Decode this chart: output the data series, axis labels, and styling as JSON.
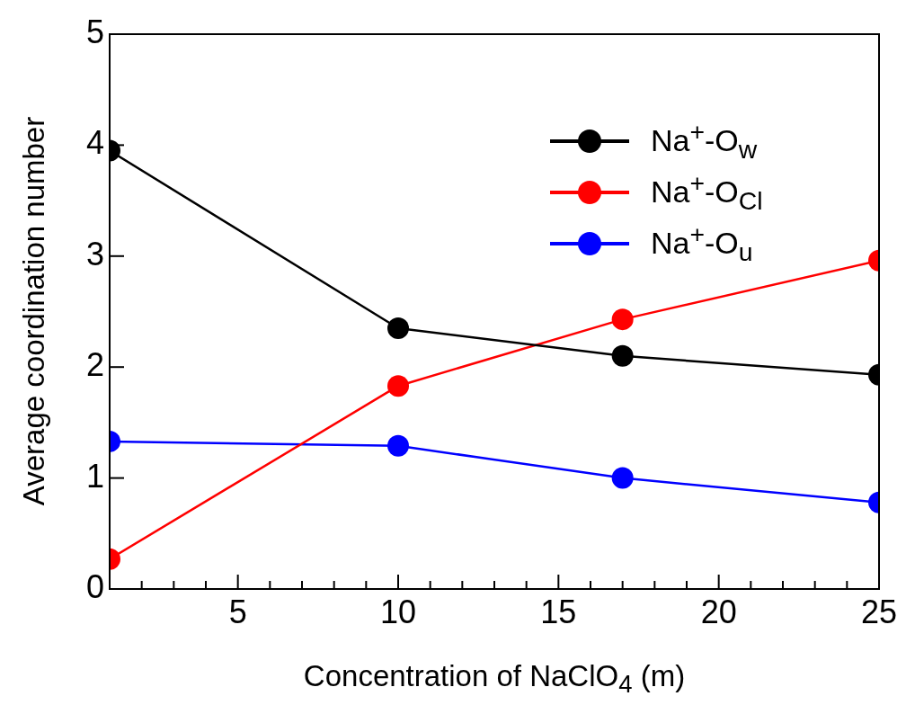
{
  "chart_data": {
    "type": "line",
    "xlabel": "Concentration of NaClO$_{4}$ (m)",
    "ylabel": "Average coordination number",
    "x": [
      1,
      10,
      17,
      25
    ],
    "series": [
      {
        "name": "Na$^{+}$-O$_{w}$",
        "color": "#000000",
        "values": [
          3.95,
          2.35,
          2.1,
          1.93
        ]
      },
      {
        "name": "Na$^{+}$-O$_{Cl}$",
        "color": "#ff0000",
        "values": [
          0.27,
          1.83,
          2.43,
          2.96
        ]
      },
      {
        "name": "Na$^{+}$-O$_{u}$",
        "color": "#0000ff",
        "values": [
          1.33,
          1.29,
          1.0,
          0.78
        ]
      }
    ],
    "xlim": [
      1,
      25
    ],
    "xticks": [
      {
        "value": 1,
        "label": null
      },
      {
        "value": 2,
        "label": null
      },
      {
        "value": 3,
        "label": null
      },
      {
        "value": 4,
        "label": null
      },
      5,
      {
        "value": 6,
        "label": null
      },
      {
        "value": 7,
        "label": null
      },
      {
        "value": 8,
        "label": null
      },
      {
        "value": 9,
        "label": null
      },
      10,
      {
        "value": 11,
        "label": null
      },
      {
        "value": 12,
        "label": null
      },
      {
        "value": 13,
        "label": null
      },
      {
        "value": 14,
        "label": null
      },
      15,
      {
        "value": 16,
        "label": null
      },
      {
        "value": 17,
        "label": null
      },
      {
        "value": 18,
        "label": null
      },
      {
        "value": 19,
        "label": null
      },
      20,
      {
        "value": 21,
        "label": null
      },
      {
        "value": 22,
        "label": null
      },
      {
        "value": 23,
        "label": null
      },
      {
        "value": 24,
        "label": null
      },
      25
    ],
    "ylim": [
      0,
      5
    ],
    "yticks": [
      0,
      1,
      2,
      3,
      4,
      5
    ],
    "grid": false,
    "legend": "top right",
    "marker": "circle",
    "line_style": "solid"
  }
}
